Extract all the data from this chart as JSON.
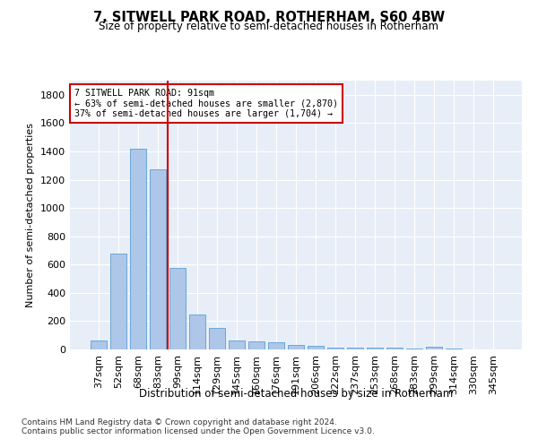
{
  "title1": "7, SITWELL PARK ROAD, ROTHERHAM, S60 4BW",
  "title2": "Size of property relative to semi-detached houses in Rotherham",
  "xlabel": "Distribution of semi-detached houses by size in Rotherham",
  "ylabel": "Number of semi-detached properties",
  "categories": [
    "37sqm",
    "52sqm",
    "68sqm",
    "83sqm",
    "99sqm",
    "114sqm",
    "129sqm",
    "145sqm",
    "160sqm",
    "176sqm",
    "191sqm",
    "206sqm",
    "222sqm",
    "237sqm",
    "253sqm",
    "268sqm",
    "283sqm",
    "299sqm",
    "314sqm",
    "330sqm",
    "345sqm"
  ],
  "values": [
    65,
    675,
    1420,
    1275,
    575,
    250,
    150,
    65,
    60,
    50,
    30,
    25,
    15,
    15,
    10,
    10,
    5,
    20,
    5,
    2,
    1
  ],
  "bar_color": "#aec6e8",
  "bar_edge_color": "#5a9fd4",
  "background_color": "#e8eef7",
  "annotation_text": "7 SITWELL PARK ROAD: 91sqm\n← 63% of semi-detached houses are smaller (2,870)\n37% of semi-detached houses are larger (1,704) →",
  "vline_color": "#cc0000",
  "box_color": "#cc0000",
  "ylim": [
    0,
    1900
  ],
  "yticks": [
    0,
    200,
    400,
    600,
    800,
    1000,
    1200,
    1400,
    1600,
    1800
  ],
  "footnote1": "Contains HM Land Registry data © Crown copyright and database right 2024.",
  "footnote2": "Contains public sector information licensed under the Open Government Licence v3.0."
}
